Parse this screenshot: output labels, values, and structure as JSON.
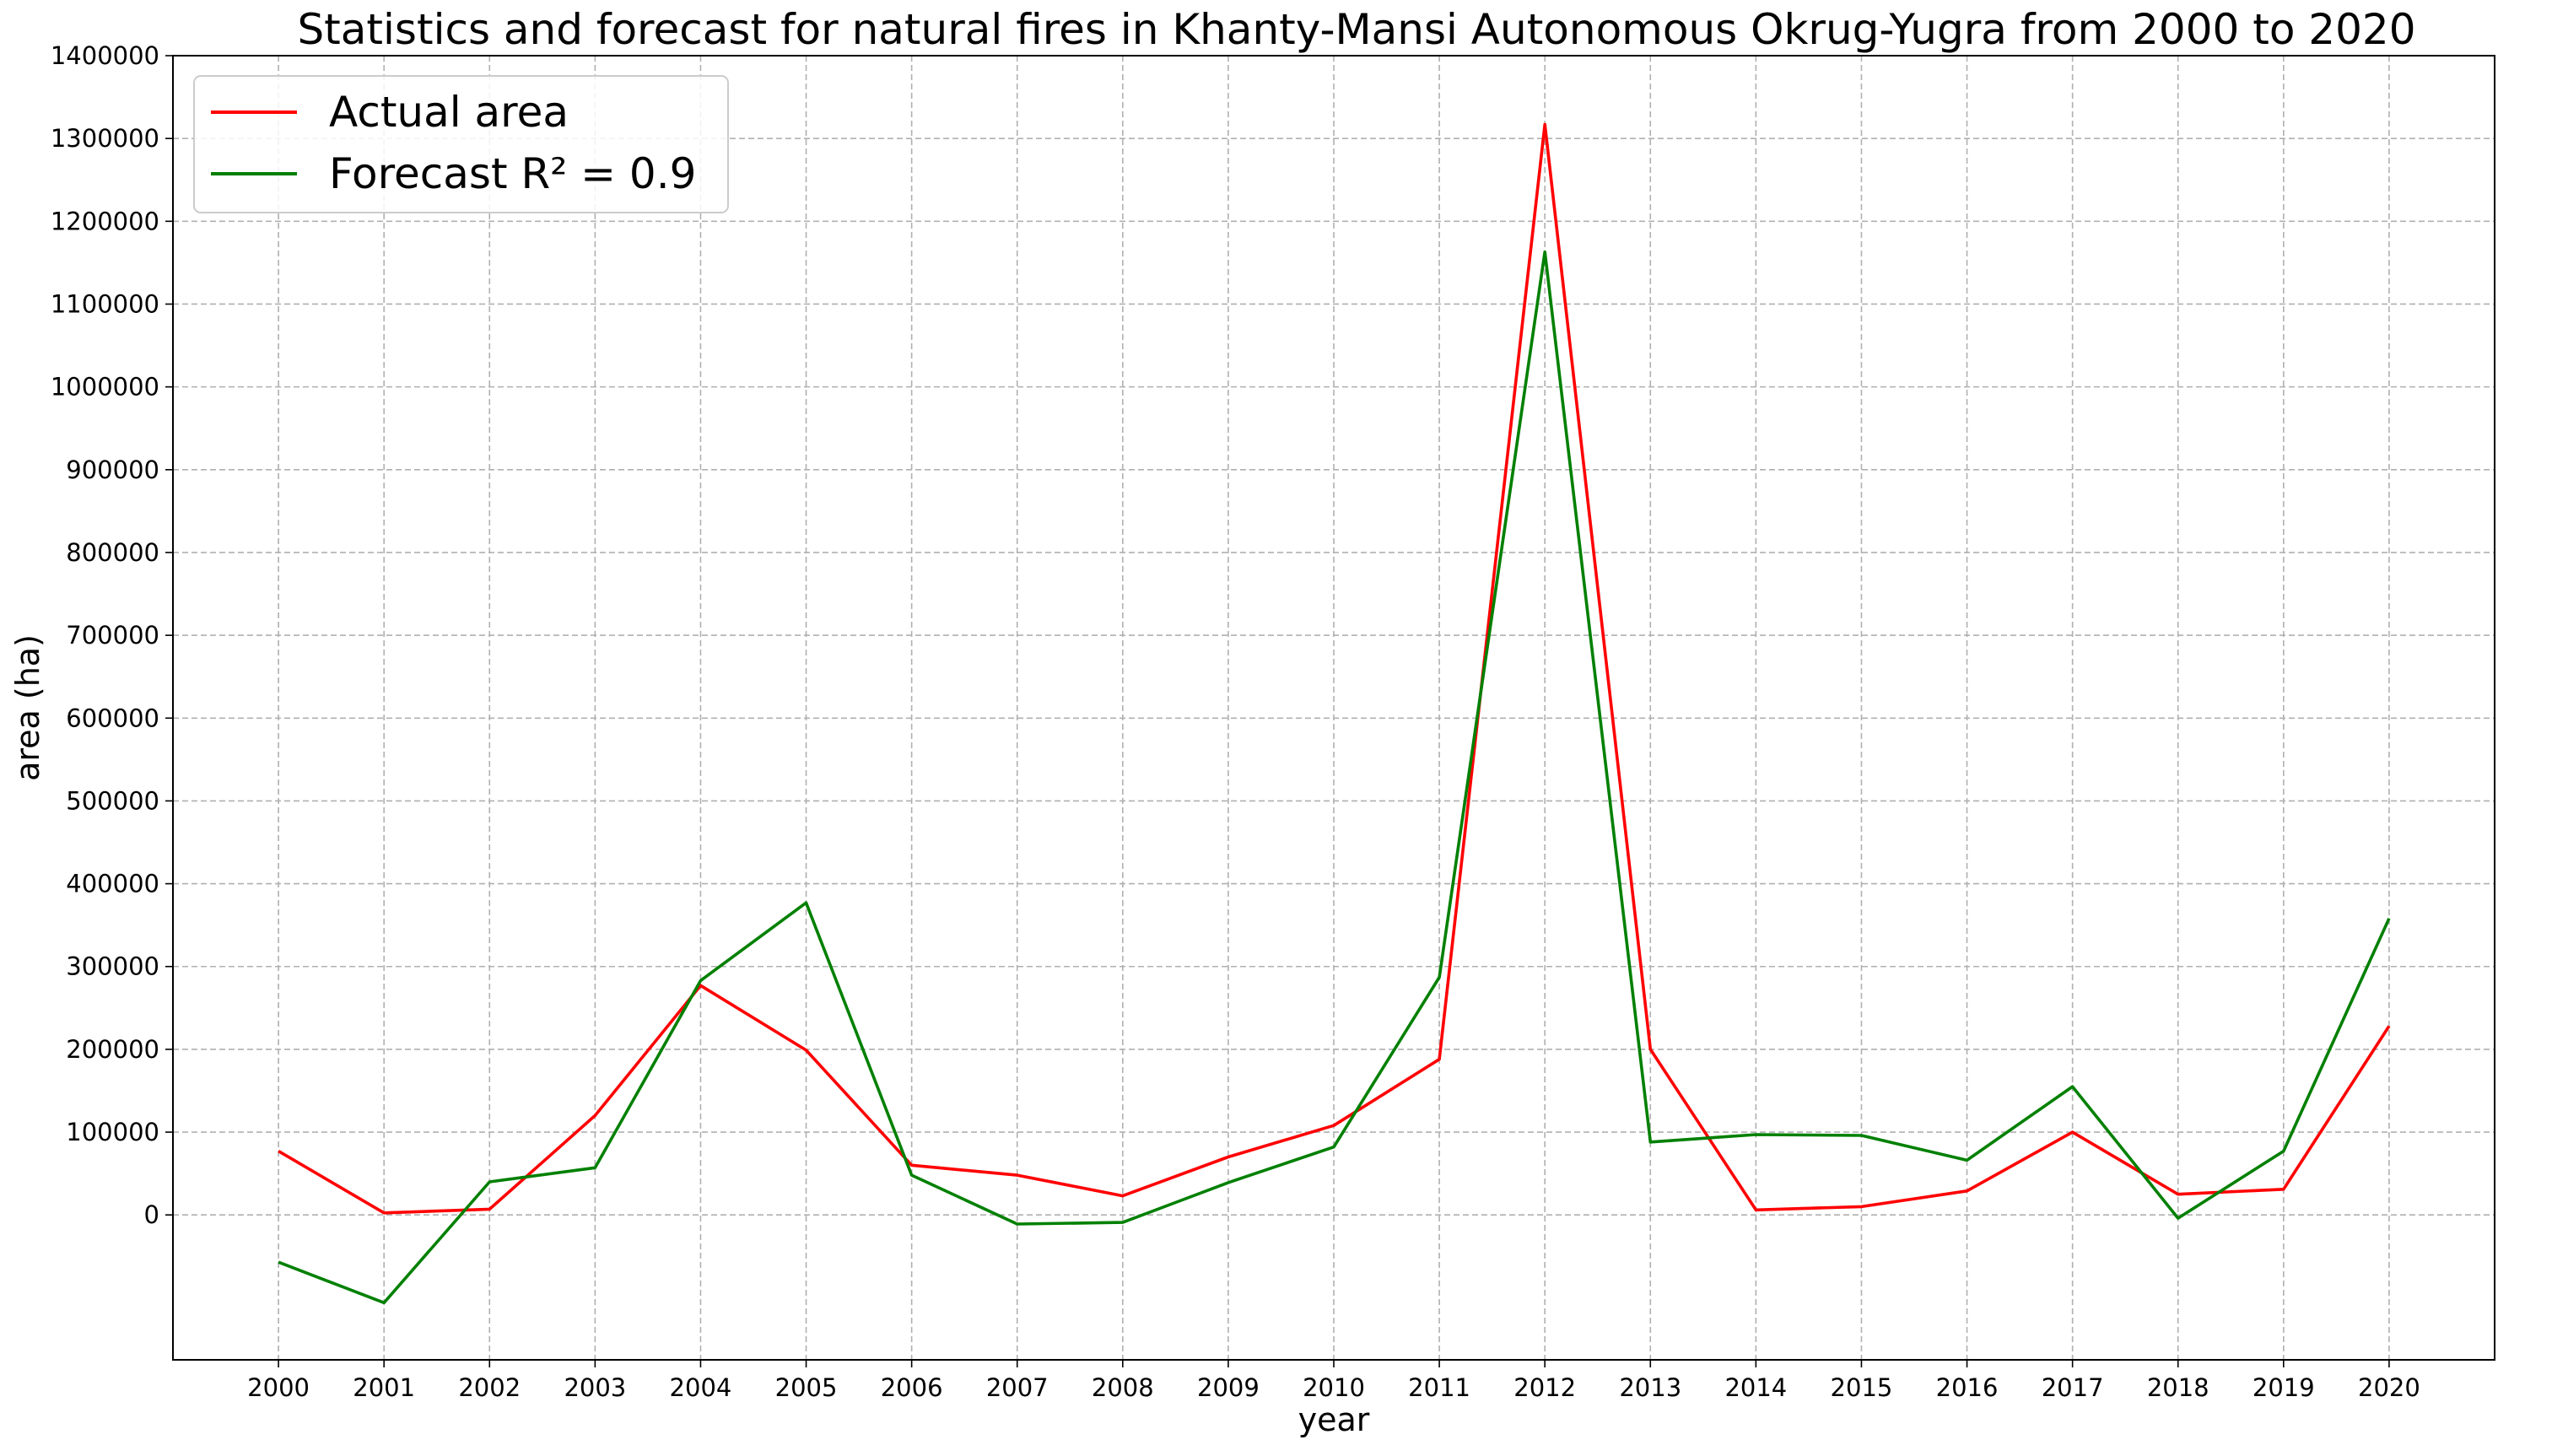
{
  "chart_data": {
    "type": "line",
    "title": "Statistics and forecast for natural fires in Khanty-Mansi Autonomous Okrug-Yugra from 2000 to 2020",
    "xlabel": "year",
    "ylabel": "area (ha)",
    "x": [
      2000,
      2001,
      2002,
      2003,
      2004,
      2005,
      2006,
      2007,
      2008,
      2009,
      2010,
      2011,
      2012,
      2013,
      2014,
      2015,
      2016,
      2017,
      2018,
      2019,
      2020
    ],
    "x_tick_labels": [
      "2000",
      "2001",
      "2002",
      "2003",
      "2004",
      "2005",
      "2006",
      "2007",
      "2008",
      "2009",
      "2010",
      "2011",
      "2012",
      "2013",
      "2014",
      "2015",
      "2016",
      "2017",
      "2018",
      "2019",
      "2020"
    ],
    "y_tick_labels": [
      "0",
      "100000",
      "200000",
      "300000",
      "400000",
      "500000",
      "600000",
      "700000",
      "800000",
      "900000",
      "1000000",
      "1100000",
      "1200000",
      "1300000",
      "1400000"
    ],
    "y_ticks": [
      0,
      100000,
      200000,
      300000,
      400000,
      500000,
      600000,
      700000,
      800000,
      900000,
      1000000,
      1100000,
      1200000,
      1300000,
      1400000
    ],
    "xlim": [
      1999,
      2021
    ],
    "ylim": [
      -175000,
      1400000
    ],
    "grid": true,
    "legend_position": "top-left",
    "series": [
      {
        "name": "Actual area",
        "color": "#ff0000",
        "values": [
          77000,
          2500,
          7000,
          120000,
          277000,
          199000,
          60000,
          48000,
          23000,
          70000,
          108000,
          188000,
          1317000,
          200000,
          6000,
          10000,
          29000,
          100000,
          25000,
          31000,
          228000
        ]
      },
      {
        "name": "Forecast  R² = 0.9",
        "color": "#008000",
        "values": [
          -57000,
          -106000,
          40000,
          57000,
          283000,
          377000,
          48000,
          -11000,
          -9000,
          39000,
          82000,
          287000,
          1163000,
          88000,
          97000,
          96000,
          66000,
          155000,
          -4000,
          77000,
          358000
        ]
      }
    ]
  }
}
